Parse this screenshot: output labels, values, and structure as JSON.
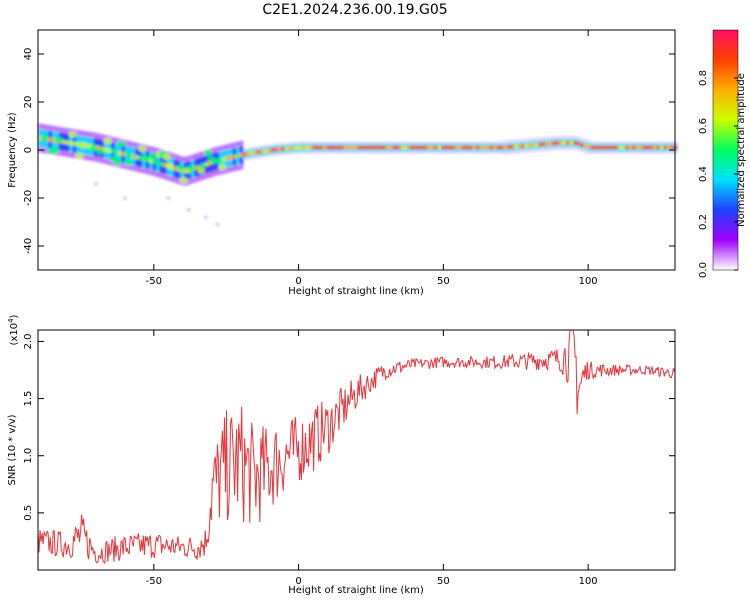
{
  "title": "C2E1.2024.236.00.19.G05",
  "chart_data": [
    {
      "type": "heatmap",
      "xlabel": "Height of straight line (km)",
      "ylabel": "Frequency (Hz)",
      "xlim": [
        -90,
        130
      ],
      "ylim": [
        -50,
        50
      ],
      "xticks": [
        -50,
        0,
        50,
        100
      ],
      "xtick_labels": [
        "-50",
        "0",
        "50",
        "100"
      ],
      "yticks": [
        -40,
        -20,
        0,
        20,
        40
      ],
      "ytick_labels": [
        "-40",
        "-20",
        "0",
        "20",
        "40"
      ],
      "ridge": {
        "x": [
          -90,
          -80,
          -70,
          -60,
          -50,
          -40,
          -35,
          -30,
          -20,
          -10,
          0,
          20,
          50,
          70,
          80,
          90,
          95,
          100,
          110,
          130
        ],
        "freq": [
          5,
          3,
          1,
          -2,
          -5,
          -9,
          -7,
          -5,
          -2,
          0,
          1,
          1,
          1,
          1,
          2,
          3,
          3,
          1,
          1,
          1
        ]
      },
      "colorbar": {
        "label": "Normalized spectral amplitude",
        "ticks": [
          0.0,
          0.2,
          0.4,
          0.6,
          0.8
        ],
        "tick_labels": [
          "0.0",
          "0.2",
          "0.4",
          "0.6",
          "0.8"
        ],
        "colors": [
          "#ffffff",
          "#a000ff",
          "#2040ff",
          "#00e0ff",
          "#00ff60",
          "#c8ff00",
          "#ffb000",
          "#ff4000",
          "#ff1060"
        ]
      }
    },
    {
      "type": "line",
      "xlabel": "Height of straight line (km)",
      "ylabel": "SNR (10 * v/v)",
      "yscale_label": "(x10",
      "yscale_exp": "4",
      "yscale_close": ")",
      "xlim": [
        -90,
        130
      ],
      "ylim": [
        0.0,
        2.1
      ],
      "xticks": [
        -50,
        0,
        50,
        100
      ],
      "xtick_labels": [
        "-50",
        "0",
        "50",
        "100"
      ],
      "yticks": [
        0.5,
        1.0,
        1.5,
        2.0
      ],
      "ytick_labels": [
        "0.5",
        "1.0",
        "1.5",
        "2.0"
      ],
      "color": "#e8343a",
      "series": [
        {
          "name": "SNR",
          "x": [
            -90,
            -80,
            -75,
            -70,
            -60,
            -50,
            -40,
            -35,
            -32,
            -30,
            -25,
            -20,
            -15,
            -10,
            -5,
            0,
            5,
            10,
            15,
            20,
            25,
            30,
            40,
            50,
            60,
            70,
            80,
            90,
            95,
            97,
            100,
            105,
            110,
            120,
            130
          ],
          "y": [
            0.25,
            0.22,
            0.3,
            0.15,
            0.2,
            0.22,
            0.2,
            0.2,
            0.25,
            0.7,
            0.9,
            0.95,
            0.8,
            0.9,
            1.0,
            1.05,
            1.15,
            1.25,
            1.4,
            1.55,
            1.65,
            1.75,
            1.8,
            1.82,
            1.82,
            1.82,
            1.83,
            1.85,
            1.9,
            1.6,
            1.75,
            1.75,
            1.75,
            1.75,
            1.72
          ],
          "noise": [
            0.12,
            0.12,
            0.2,
            0.1,
            0.12,
            0.12,
            0.1,
            0.12,
            0.15,
            0.4,
            0.5,
            0.55,
            0.45,
            0.4,
            0.35,
            0.3,
            0.3,
            0.25,
            0.2,
            0.15,
            0.1,
            0.08,
            0.05,
            0.05,
            0.05,
            0.06,
            0.08,
            0.1,
            0.35,
            0.45,
            0.08,
            0.06,
            0.05,
            0.04,
            0.05
          ]
        }
      ]
    }
  ]
}
